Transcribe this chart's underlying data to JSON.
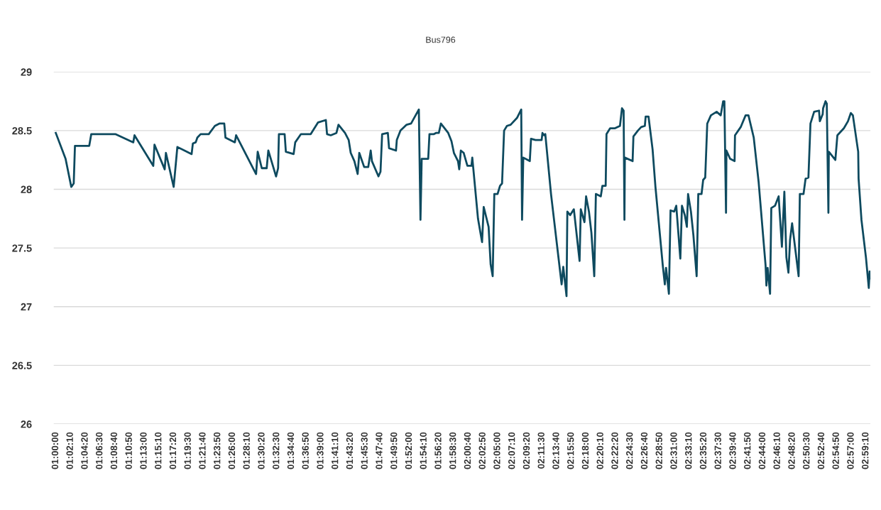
{
  "chart_data": {
    "type": "line",
    "title": "Bus796",
    "x": [
      1.0,
      1.024,
      1.038,
      1.044,
      1.047,
      1.082,
      1.087,
      1.146,
      1.19,
      1.193,
      1.239,
      1.242,
      1.267,
      1.27,
      1.289,
      1.298,
      1.333,
      1.336,
      1.343,
      1.347,
      1.355,
      1.375,
      1.39,
      1.401,
      1.413,
      1.416,
      1.439,
      1.442,
      1.491,
      1.495,
      1.505,
      1.517,
      1.521,
      1.54,
      1.545,
      1.547,
      1.561,
      1.564,
      1.583,
      1.587,
      1.601,
      1.625,
      1.643,
      1.662,
      1.665,
      1.674,
      1.688,
      1.693,
      1.709,
      1.718,
      1.723,
      1.732,
      1.74,
      1.744,
      1.756,
      1.766,
      1.772,
      1.775,
      1.791,
      1.796,
      1.8,
      1.814,
      1.817,
      1.834,
      1.836,
      1.845,
      1.86,
      1.871,
      1.89,
      1.894,
      1.897,
      1.913,
      1.916,
      1.927,
      1.932,
      1.939,
      1.944,
      1.962,
      1.97,
      1.976,
      1.986,
      1.989,
      1.993,
      2.0,
      2.009,
      2.019,
      2.021,
      2.035,
      2.042,
      2.045,
      2.049,
      2.061,
      2.066,
      2.071,
      2.075,
      2.083,
      2.089,
      2.094,
      2.099,
      2.106,
      2.115,
      2.131,
      2.141,
      2.143,
      2.146,
      2.162,
      2.165,
      2.176,
      2.191,
      2.193,
      2.197,
      2.2,
      2.214,
      2.24,
      2.244,
      2.252,
      2.254,
      2.261,
      2.27,
      2.284,
      2.287,
      2.296,
      2.3,
      2.307,
      2.313,
      2.32,
      2.324,
      2.336,
      2.34,
      2.348,
      2.35,
      2.359,
      2.371,
      2.383,
      2.388,
      2.392,
      2.394,
      2.395,
      2.414,
      2.416,
      2.427,
      2.435,
      2.444,
      2.446,
      2.453,
      2.463,
      2.47,
      2.488,
      2.493,
      2.496,
      2.503,
      2.507,
      2.516,
      2.521,
      2.531,
      2.535,
      2.542,
      2.547,
      2.55,
      2.557,
      2.563,
      2.571,
      2.575,
      2.583,
      2.587,
      2.592,
      2.597,
      2.606,
      2.62,
      2.63,
      2.636,
      2.639,
      2.643,
      2.644,
      2.653,
      2.664,
      2.665,
      2.679,
      2.691,
      2.698,
      2.711,
      2.723,
      2.74,
      2.742,
      2.745,
      2.751,
      2.754,
      2.763,
      2.772,
      2.78,
      2.786,
      2.791,
      2.796,
      2.8,
      2.805,
      2.821,
      2.824,
      2.833,
      2.838,
      2.845,
      2.85,
      2.859,
      2.871,
      2.873,
      2.88,
      2.881,
      2.887,
      2.89,
      2.894,
      2.895,
      2.911,
      2.916,
      2.932,
      2.942,
      2.949,
      2.954,
      2.967,
      2.968,
      2.975,
      2.986,
      2.993,
      2.995,
      2.996
    ],
    "series": [
      {
        "color": "#0e4a5f",
        "values": [
          28.48,
          28.26,
          28.02,
          28.05,
          28.37,
          28.37,
          28.47,
          28.47,
          28.4,
          28.46,
          28.2,
          28.38,
          28.17,
          28.31,
          28.02,
          28.36,
          28.3,
          28.39,
          28.4,
          28.44,
          28.47,
          28.47,
          28.54,
          28.56,
          28.56,
          28.44,
          28.4,
          28.46,
          28.13,
          28.32,
          28.18,
          28.18,
          28.33,
          28.11,
          28.18,
          28.47,
          28.47,
          28.32,
          28.3,
          28.4,
          28.47,
          28.47,
          28.57,
          28.59,
          28.47,
          28.46,
          28.48,
          28.55,
          28.48,
          28.42,
          28.31,
          28.24,
          28.13,
          28.31,
          28.19,
          28.19,
          28.33,
          28.24,
          28.11,
          28.15,
          28.47,
          28.48,
          28.35,
          28.33,
          28.42,
          28.5,
          28.55,
          28.56,
          28.68,
          27.74,
          28.26,
          28.26,
          28.47,
          28.47,
          28.48,
          28.48,
          28.56,
          28.48,
          28.41,
          28.31,
          28.24,
          28.17,
          28.33,
          28.31,
          28.2,
          28.2,
          28.27,
          27.75,
          27.61,
          27.55,
          27.85,
          27.68,
          27.36,
          27.26,
          27.96,
          27.96,
          28.03,
          28.05,
          28.5,
          28.54,
          28.55,
          28.61,
          28.68,
          27.74,
          28.27,
          28.24,
          28.43,
          28.42,
          28.42,
          28.48,
          28.46,
          28.47,
          27.96,
          27.19,
          27.34,
          27.09,
          27.81,
          27.78,
          27.83,
          27.39,
          27.83,
          27.72,
          27.94,
          27.81,
          27.63,
          27.26,
          27.96,
          27.94,
          28.03,
          28.03,
          28.47,
          28.52,
          28.52,
          28.54,
          28.69,
          28.67,
          27.74,
          28.27,
          28.24,
          28.45,
          28.5,
          28.53,
          28.54,
          28.62,
          28.62,
          28.34,
          28.02,
          27.35,
          27.19,
          27.33,
          27.11,
          27.82,
          27.81,
          27.86,
          27.41,
          27.86,
          27.78,
          27.68,
          27.96,
          27.81,
          27.61,
          27.26,
          27.96,
          27.96,
          28.08,
          28.1,
          28.56,
          28.63,
          28.66,
          28.63,
          28.75,
          28.75,
          27.8,
          28.33,
          28.26,
          28.24,
          28.46,
          28.53,
          28.63,
          28.63,
          28.44,
          28.06,
          27.35,
          27.18,
          27.33,
          27.11,
          27.84,
          27.86,
          27.94,
          27.51,
          27.98,
          27.42,
          27.29,
          27.57,
          27.71,
          27.26,
          27.96,
          27.96,
          28.09,
          28.1,
          28.56,
          28.66,
          28.67,
          28.58,
          28.64,
          28.69,
          28.75,
          28.73,
          27.8,
          28.32,
          28.25,
          28.46,
          28.52,
          28.58,
          28.65,
          28.63,
          28.32,
          28.09,
          27.74,
          27.42,
          27.16,
          27.3,
          27.24
        ]
      }
    ],
    "xlim": [
      0.995,
      2.997
    ],
    "xticks": [
      {
        "value": 1,
        "label": "01:00:00"
      },
      {
        "value": 1.0361,
        "label": "01:02:10"
      },
      {
        "value": 1.0722,
        "label": "01:04:20"
      },
      {
        "value": 1.1083,
        "label": "01:06:30"
      },
      {
        "value": 1.1444,
        "label": "01:08:40"
      },
      {
        "value": 1.1806,
        "label": "01:10:50"
      },
      {
        "value": 1.2167,
        "label": "01:13:00"
      },
      {
        "value": 1.2528,
        "label": "01:15:10"
      },
      {
        "value": 1.2889,
        "label": "01:17:20"
      },
      {
        "value": 1.325,
        "label": "01:19:30"
      },
      {
        "value": 1.3611,
        "label": "01:21:40"
      },
      {
        "value": 1.3972,
        "label": "01:23:50"
      },
      {
        "value": 1.4333,
        "label": "01:26:00"
      },
      {
        "value": 1.4694,
        "label": "01:28:10"
      },
      {
        "value": 1.5056,
        "label": "01:30:20"
      },
      {
        "value": 1.5417,
        "label": "01:32:30"
      },
      {
        "value": 1.5778,
        "label": "01:34:40"
      },
      {
        "value": 1.6139,
        "label": "01:36:50"
      },
      {
        "value": 1.65,
        "label": "01:39:00"
      },
      {
        "value": 1.6861,
        "label": "01:41:10"
      },
      {
        "value": 1.7222,
        "label": "01:43:20"
      },
      {
        "value": 1.7583,
        "label": "01:45:30"
      },
      {
        "value": 1.7944,
        "label": "01:47:40"
      },
      {
        "value": 1.8306,
        "label": "01:49:50"
      },
      {
        "value": 1.8667,
        "label": "01:52:00"
      },
      {
        "value": 1.9028,
        "label": "01:54:10"
      },
      {
        "value": 1.9389,
        "label": "01:56:20"
      },
      {
        "value": 1.975,
        "label": "01:58:30"
      },
      {
        "value": 2.0111,
        "label": "02:00:40"
      },
      {
        "value": 2.0472,
        "label": "02:02:50"
      },
      {
        "value": 2.0833,
        "label": "02:05:00"
      },
      {
        "value": 2.1194,
        "label": "02:07:10"
      },
      {
        "value": 2.1556,
        "label": "02:09:20"
      },
      {
        "value": 2.1917,
        "label": "02:11:30"
      },
      {
        "value": 2.2278,
        "label": "02:13:40"
      },
      {
        "value": 2.2639,
        "label": "02:15:50"
      },
      {
        "value": 2.3,
        "label": "02:18:00"
      },
      {
        "value": 2.3361,
        "label": "02:20:10"
      },
      {
        "value": 2.3722,
        "label": "02:22:20"
      },
      {
        "value": 2.4083,
        "label": "02:24:30"
      },
      {
        "value": 2.4444,
        "label": "02:26:40"
      },
      {
        "value": 2.4806,
        "label": "02:28:50"
      },
      {
        "value": 2.5167,
        "label": "02:31:00"
      },
      {
        "value": 2.5528,
        "label": "02:33:10"
      },
      {
        "value": 2.5889,
        "label": "02:35:20"
      },
      {
        "value": 2.625,
        "label": "02:37:30"
      },
      {
        "value": 2.6611,
        "label": "02:39:40"
      },
      {
        "value": 2.6972,
        "label": "02:41:50"
      },
      {
        "value": 2.7333,
        "label": "02:44:00"
      },
      {
        "value": 2.7694,
        "label": "02:46:10"
      },
      {
        "value": 2.8056,
        "label": "02:48:20"
      },
      {
        "value": 2.8417,
        "label": "02:50:30"
      },
      {
        "value": 2.8778,
        "label": "02:52:40"
      },
      {
        "value": 2.9139,
        "label": "02:54:50"
      },
      {
        "value": 2.95,
        "label": "02:57:00"
      },
      {
        "value": 2.9861,
        "label": "02:59:10"
      }
    ],
    "ylim": [
      26,
      29
    ],
    "yticks": [
      26,
      26.5,
      27,
      27.5,
      28,
      28.5,
      29
    ],
    "grid": "y",
    "marker": "none",
    "line_style": "solid"
  }
}
